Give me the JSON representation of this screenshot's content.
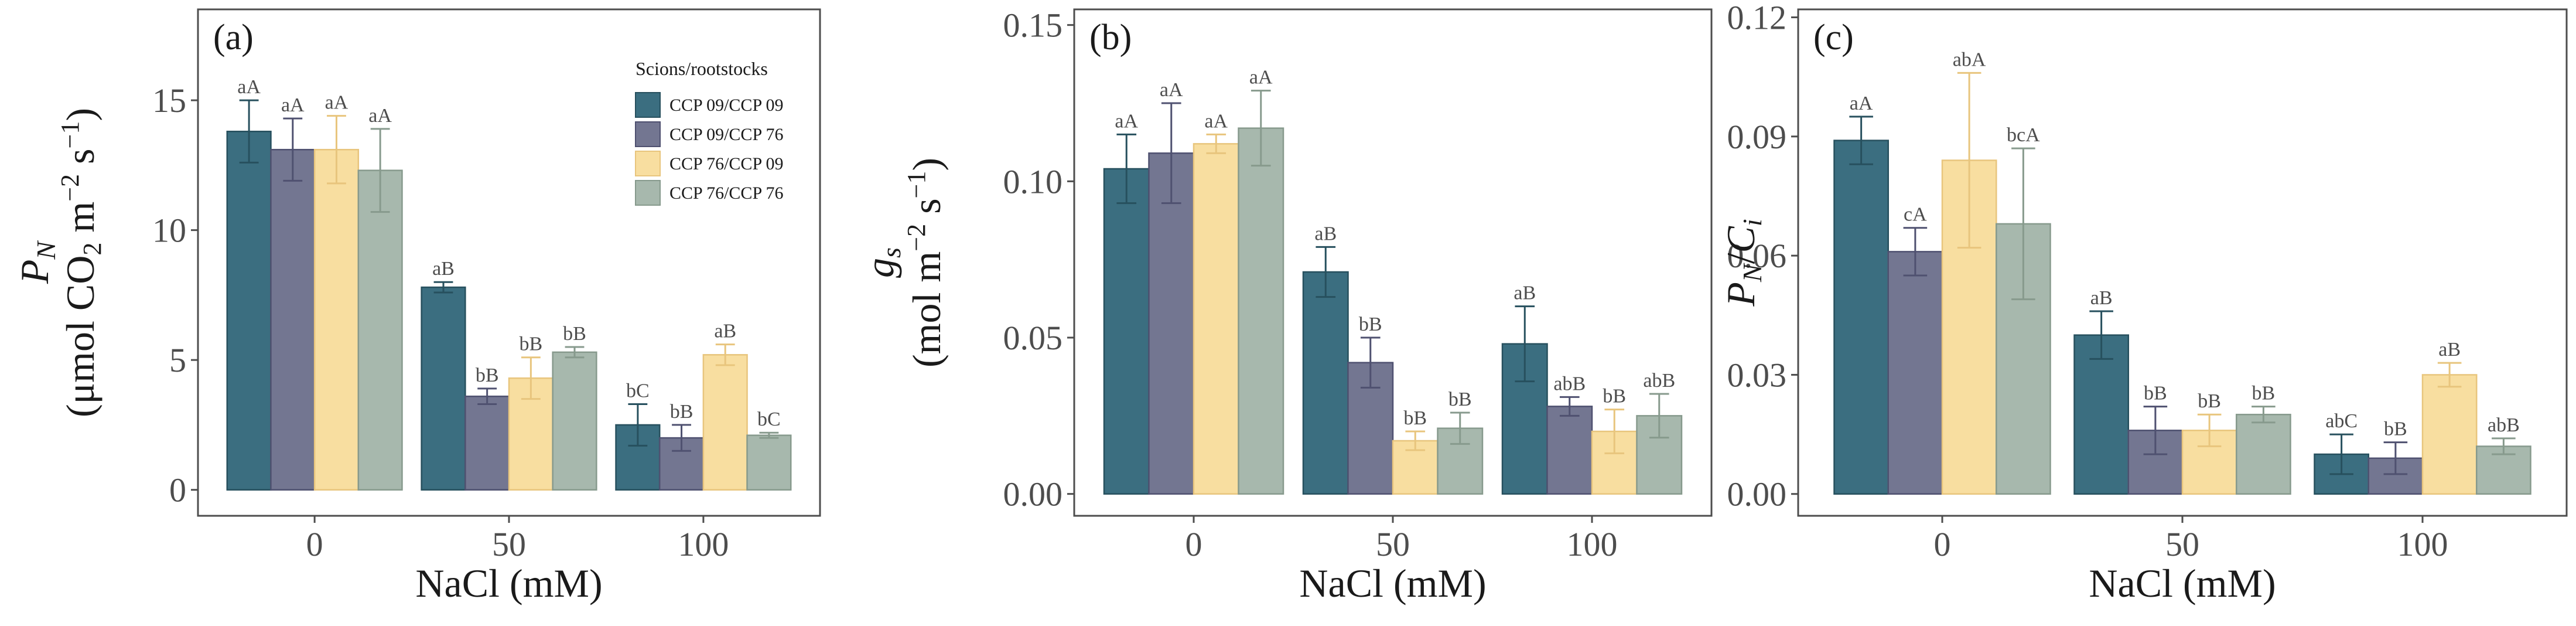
{
  "legend": {
    "title": "Scions/rootstocks",
    "entries": [
      "CCP 09/CCP 09",
      "CCP 09/CCP 76",
      "CCP 76/CCP 09",
      "CCP 76/CCP 76"
    ],
    "colors": [
      "#3b6e80",
      "#737691",
      "#f8dea0",
      "#a7b8ad"
    ],
    "stroke_colors": [
      "#27505e",
      "#4f5170",
      "#e8c57d",
      "#879a8d"
    ]
  },
  "chart_data": [
    {
      "type": "bar",
      "tag": "(a)",
      "xlabel": "NaCl (mM)",
      "ylabel_var": "P",
      "ylabel_sub": "N",
      "ylabel_unit_pre": "(μmol CO",
      "ylabel_unit_sub": "2",
      "ylabel_unit_mid": " m",
      "ylabel_unit_sup1": "−2",
      "ylabel_unit_mid2": " s",
      "ylabel_unit_sup2": "−1",
      "ylabel_unit_post": ")",
      "categories": [
        "0",
        "50",
        "100"
      ],
      "ylim": [
        -1.0,
        18.5
      ],
      "yticks": [
        0,
        5,
        10,
        15
      ],
      "ytick_labels": [
        "0",
        "5",
        "10",
        "15"
      ],
      "series": [
        {
          "name": "CCP 09/CCP 09",
          "values": [
            13.8,
            7.8,
            2.5
          ],
          "errors": [
            1.2,
            0.2,
            0.8
          ],
          "labels": [
            "aA",
            "aB",
            "bC"
          ]
        },
        {
          "name": "CCP 09/CCP 76",
          "values": [
            13.1,
            3.6,
            2.0
          ],
          "errors": [
            1.2,
            0.3,
            0.5
          ],
          "labels": [
            "aA",
            "bB",
            "bB"
          ]
        },
        {
          "name": "CCP 76/CCP 09",
          "values": [
            13.1,
            4.3,
            5.2
          ],
          "errors": [
            1.3,
            0.8,
            0.4
          ],
          "labels": [
            "aA",
            "bB",
            "aB"
          ]
        },
        {
          "name": "CCP 76/CCP 76",
          "values": [
            12.3,
            5.3,
            2.1
          ],
          "errors": [
            1.6,
            0.2,
            0.1
          ],
          "labels": [
            "aA",
            "bB",
            "bC"
          ]
        }
      ]
    },
    {
      "type": "bar",
      "tag": "(b)",
      "xlabel": "NaCl (mM)",
      "ylabel_var": "g",
      "ylabel_sub": "s",
      "ylabel_unit_pre": "(mol m",
      "ylabel_unit_sup1": "−2",
      "ylabel_unit_mid2": " s",
      "ylabel_unit_sup2": "−1",
      "ylabel_unit_post": ")",
      "categories": [
        "0",
        "50",
        "100"
      ],
      "ylim": [
        -0.007,
        0.155
      ],
      "yticks": [
        0,
        0.05,
        0.1,
        0.15
      ],
      "ytick_labels": [
        "0.00",
        "0.05",
        "0.10",
        "0.15"
      ],
      "series": [
        {
          "name": "CCP 09/CCP 09",
          "values": [
            0.104,
            0.071,
            0.048
          ],
          "errors": [
            0.011,
            0.008,
            0.012
          ],
          "labels": [
            "aA",
            "aB",
            "aB"
          ]
        },
        {
          "name": "CCP 09/CCP 76",
          "values": [
            0.109,
            0.042,
            0.028
          ],
          "errors": [
            0.016,
            0.008,
            0.003
          ],
          "labels": [
            "aA",
            "bB",
            "abB"
          ]
        },
        {
          "name": "CCP 76/CCP 09",
          "values": [
            0.112,
            0.017,
            0.02
          ],
          "errors": [
            0.003,
            0.003,
            0.007
          ],
          "labels": [
            "aA",
            "bB",
            "bB"
          ]
        },
        {
          "name": "CCP 76/CCP 76",
          "values": [
            0.117,
            0.021,
            0.025
          ],
          "errors": [
            0.012,
            0.005,
            0.007
          ],
          "labels": [
            "aA",
            "bB",
            "abB"
          ]
        }
      ]
    },
    {
      "type": "bar",
      "tag": "(c)",
      "xlabel": "NaCl (mM)",
      "ylabel_var": "P",
      "ylabel_sub": "N",
      "ylabel_slash": "/",
      "ylabel_var2": "C",
      "ylabel_sub2": "i",
      "categories": [
        "0",
        "50",
        "100"
      ],
      "ylim": [
        -0.0055,
        0.122
      ],
      "yticks": [
        0,
        0.03,
        0.06,
        0.09,
        0.12
      ],
      "ytick_labels": [
        "0.00",
        "0.03",
        "0.06",
        "0.09",
        "0.12"
      ],
      "series": [
        {
          "name": "CCP 09/CCP 09",
          "values": [
            0.089,
            0.04,
            0.01
          ],
          "errors": [
            0.006,
            0.006,
            0.005
          ],
          "labels": [
            "aA",
            "aB",
            "abC"
          ]
        },
        {
          "name": "CCP 09/CCP 76",
          "values": [
            0.061,
            0.016,
            0.009
          ],
          "errors": [
            0.006,
            0.006,
            0.004
          ],
          "labels": [
            "cA",
            "bB",
            "bB"
          ]
        },
        {
          "name": "CCP 76/CCP 09",
          "values": [
            0.084,
            0.016,
            0.03
          ],
          "errors": [
            0.022,
            0.004,
            0.003
          ],
          "labels": [
            "abA",
            "bB",
            "aB"
          ]
        },
        {
          "name": "CCP 76/CCP 76",
          "values": [
            0.068,
            0.02,
            0.012
          ],
          "errors": [
            0.019,
            0.002,
            0.002
          ],
          "labels": [
            "bcA",
            "bB",
            "abB"
          ]
        }
      ]
    }
  ]
}
